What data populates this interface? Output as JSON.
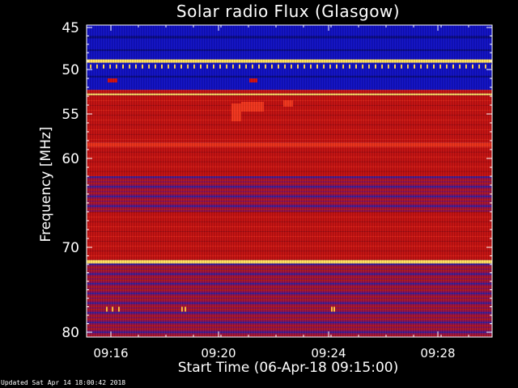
{
  "title": "Solar radio Flux (Glasgow)",
  "footer": "Updated Sat Apr 14 18:00:42 2018",
  "colors": {
    "background": "#000000",
    "axis": "#ffffff",
    "low_intensity": "#1010c0",
    "mid_intensity": "#c01010",
    "high_intensity": "#ffe060"
  },
  "chart_data": {
    "type": "heatmap",
    "title": "Solar radio Flux (Glasgow)",
    "xlabel": "Start Time (06-Apr-18 09:15:00)",
    "ylabel": "Frequency [MHz]",
    "x_ticks": [
      "09:16",
      "09:20",
      "09:24",
      "09:28"
    ],
    "y_ticks": [
      45,
      50,
      55,
      60,
      70,
      80
    ],
    "colorscale": "blue-red-yellow",
    "grid": false,
    "bands": [
      {
        "from_mhz": 45.0,
        "to_mhz": 45.5,
        "level": "low"
      },
      {
        "from_mhz": 45.5,
        "to_mhz": 48.8,
        "level": "low"
      },
      {
        "from_mhz": 48.8,
        "to_mhz": 49.2,
        "level": "high"
      },
      {
        "from_mhz": 49.2,
        "to_mhz": 51.5,
        "level": "low"
      },
      {
        "from_mhz": 51.5,
        "to_mhz": 52.3,
        "level": "low"
      },
      {
        "from_mhz": 52.3,
        "to_mhz": 52.7,
        "level": "mid"
      },
      {
        "from_mhz": 52.7,
        "to_mhz": 52.9,
        "level": "high"
      },
      {
        "from_mhz": 52.9,
        "to_mhz": 58.2,
        "level": "mid"
      },
      {
        "from_mhz": 58.2,
        "to_mhz": 58.7,
        "level": "mid-high"
      },
      {
        "from_mhz": 58.7,
        "to_mhz": 62.0,
        "level": "mid"
      },
      {
        "from_mhz": 62.0,
        "to_mhz": 66.0,
        "level": "mixed"
      },
      {
        "from_mhz": 66.0,
        "to_mhz": 71.5,
        "level": "mid"
      },
      {
        "from_mhz": 71.5,
        "to_mhz": 71.9,
        "level": "high"
      },
      {
        "from_mhz": 71.9,
        "to_mhz": 80.0,
        "level": "mixed"
      }
    ]
  }
}
